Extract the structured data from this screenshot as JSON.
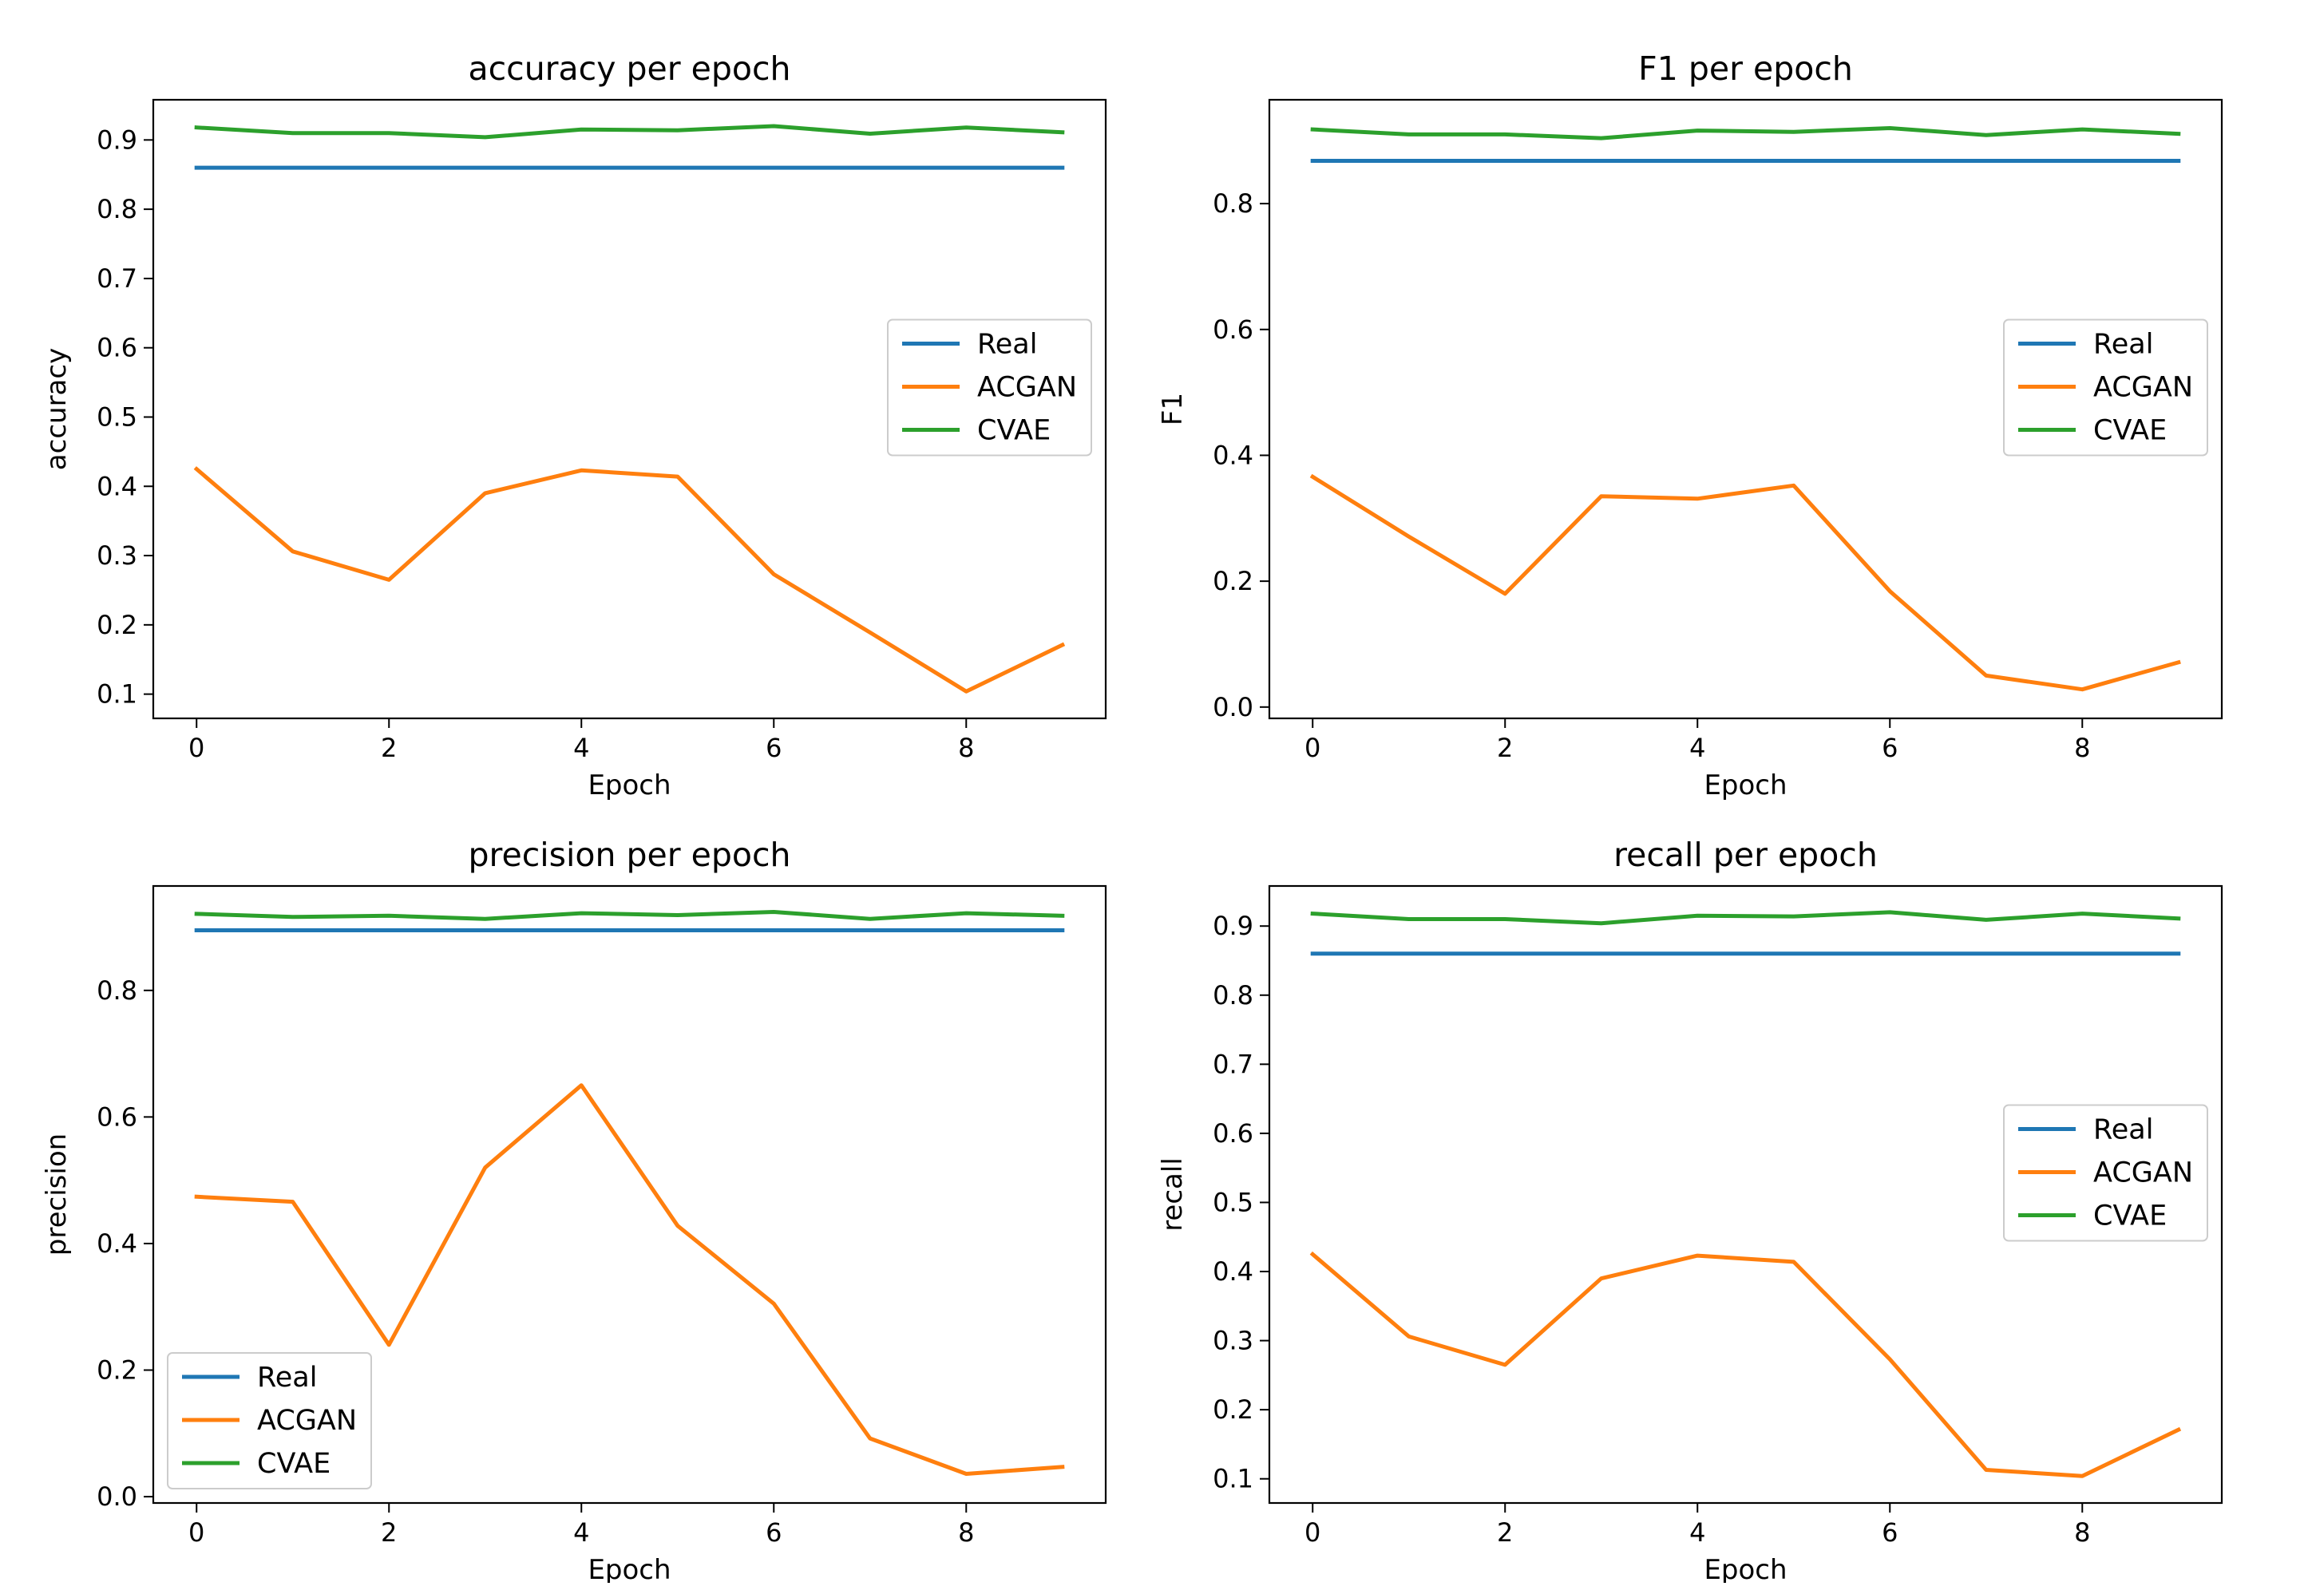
{
  "chart_data": [
    {
      "type": "line",
      "title": "accuracy per epoch",
      "xlabel": "Epoch",
      "ylabel": "accuracy",
      "xlim": [
        -0.45,
        9.45
      ],
      "ylim": [
        0.065,
        0.958
      ],
      "xticks": [
        0,
        2,
        4,
        6,
        8
      ],
      "xtick_labels": [
        "0",
        "2",
        "4",
        "6",
        "8"
      ],
      "yticks": [
        0.1,
        0.2,
        0.3,
        0.4,
        0.5,
        0.6,
        0.7,
        0.8,
        0.9
      ],
      "ytick_labels": [
        "0.1",
        "0.2",
        "0.3",
        "0.4",
        "0.5",
        "0.6",
        "0.7",
        "0.8",
        "0.9"
      ],
      "grid": false,
      "legend_position": "center-right",
      "x": [
        0,
        1,
        2,
        3,
        4,
        5,
        6,
        7,
        8,
        9
      ],
      "series": [
        {
          "name": "Real",
          "color": "#1f77b4",
          "values": [
            0.86,
            0.86,
            0.86,
            0.86,
            0.86,
            0.86,
            0.86,
            0.86,
            0.86,
            0.86
          ]
        },
        {
          "name": "ACGAN",
          "color": "#ff7f0e",
          "values": [
            0.425,
            0.306,
            0.265,
            0.39,
            0.423,
            0.414,
            0.273,
            0.189,
            0.104,
            0.171
          ]
        },
        {
          "name": "CVAE",
          "color": "#2ca02c",
          "values": [
            0.918,
            0.91,
            0.91,
            0.904,
            0.915,
            0.914,
            0.92,
            0.909,
            0.918,
            0.911
          ]
        }
      ]
    },
    {
      "type": "line",
      "title": "F1 per epoch",
      "xlabel": "Epoch",
      "ylabel": "F1",
      "xlim": [
        -0.45,
        9.45
      ],
      "ylim": [
        -0.018,
        0.965
      ],
      "xticks": [
        0,
        2,
        4,
        6,
        8
      ],
      "xtick_labels": [
        "0",
        "2",
        "4",
        "6",
        "8"
      ],
      "yticks": [
        0.0,
        0.2,
        0.4,
        0.6,
        0.8
      ],
      "ytick_labels": [
        "0.0",
        "0.2",
        "0.4",
        "0.6",
        "0.8"
      ],
      "grid": false,
      "legend_position": "center-right",
      "x": [
        0,
        1,
        2,
        3,
        4,
        5,
        6,
        7,
        8,
        9
      ],
      "series": [
        {
          "name": "Real",
          "color": "#1f77b4",
          "values": [
            0.868,
            0.868,
            0.868,
            0.868,
            0.868,
            0.868,
            0.868,
            0.868,
            0.868,
            0.868
          ]
        },
        {
          "name": "ACGAN",
          "color": "#ff7f0e",
          "values": [
            0.366,
            0.271,
            0.18,
            0.335,
            0.331,
            0.352,
            0.184,
            0.05,
            0.028,
            0.071
          ]
        },
        {
          "name": "CVAE",
          "color": "#2ca02c",
          "values": [
            0.918,
            0.91,
            0.91,
            0.904,
            0.916,
            0.914,
            0.92,
            0.909,
            0.918,
            0.911
          ]
        }
      ]
    },
    {
      "type": "line",
      "title": "precision per epoch",
      "xlabel": "Epoch",
      "ylabel": "precision",
      "xlim": [
        -0.45,
        9.45
      ],
      "ylim": [
        -0.01,
        0.965
      ],
      "xticks": [
        0,
        2,
        4,
        6,
        8
      ],
      "xtick_labels": [
        "0",
        "2",
        "4",
        "6",
        "8"
      ],
      "yticks": [
        0.0,
        0.2,
        0.4,
        0.6,
        0.8
      ],
      "ytick_labels": [
        "0.0",
        "0.2",
        "0.4",
        "0.6",
        "0.8"
      ],
      "grid": false,
      "legend_position": "lower-left",
      "x": [
        0,
        1,
        2,
        3,
        4,
        5,
        6,
        7,
        8,
        9
      ],
      "series": [
        {
          "name": "Real",
          "color": "#1f77b4",
          "values": [
            0.895,
            0.895,
            0.895,
            0.895,
            0.895,
            0.895,
            0.895,
            0.895,
            0.895,
            0.895
          ]
        },
        {
          "name": "ACGAN",
          "color": "#ff7f0e",
          "values": [
            0.474,
            0.466,
            0.24,
            0.52,
            0.65,
            0.428,
            0.305,
            0.092,
            0.036,
            0.047
          ]
        },
        {
          "name": "CVAE",
          "color": "#2ca02c",
          "values": [
            0.921,
            0.916,
            0.918,
            0.913,
            0.922,
            0.919,
            0.924,
            0.913,
            0.922,
            0.918
          ]
        }
      ]
    },
    {
      "type": "line",
      "title": "recall per epoch",
      "xlabel": "Epoch",
      "ylabel": "recall",
      "xlim": [
        -0.45,
        9.45
      ],
      "ylim": [
        0.065,
        0.958
      ],
      "xticks": [
        0,
        2,
        4,
        6,
        8
      ],
      "xtick_labels": [
        "0",
        "2",
        "4",
        "6",
        "8"
      ],
      "yticks": [
        0.1,
        0.2,
        0.3,
        0.4,
        0.5,
        0.6,
        0.7,
        0.8,
        0.9
      ],
      "ytick_labels": [
        "0.1",
        "0.2",
        "0.3",
        "0.4",
        "0.5",
        "0.6",
        "0.7",
        "0.8",
        "0.9"
      ],
      "grid": false,
      "legend_position": "center-right",
      "x": [
        0,
        1,
        2,
        3,
        4,
        5,
        6,
        7,
        8,
        9
      ],
      "series": [
        {
          "name": "Real",
          "color": "#1f77b4",
          "values": [
            0.86,
            0.86,
            0.86,
            0.86,
            0.86,
            0.86,
            0.86,
            0.86,
            0.86,
            0.86
          ]
        },
        {
          "name": "ACGAN",
          "color": "#ff7f0e",
          "values": [
            0.425,
            0.306,
            0.265,
            0.39,
            0.423,
            0.414,
            0.273,
            0.113,
            0.104,
            0.171
          ]
        },
        {
          "name": "CVAE",
          "color": "#2ca02c",
          "values": [
            0.918,
            0.91,
            0.91,
            0.904,
            0.915,
            0.914,
            0.92,
            0.909,
            0.918,
            0.911
          ]
        }
      ]
    }
  ]
}
